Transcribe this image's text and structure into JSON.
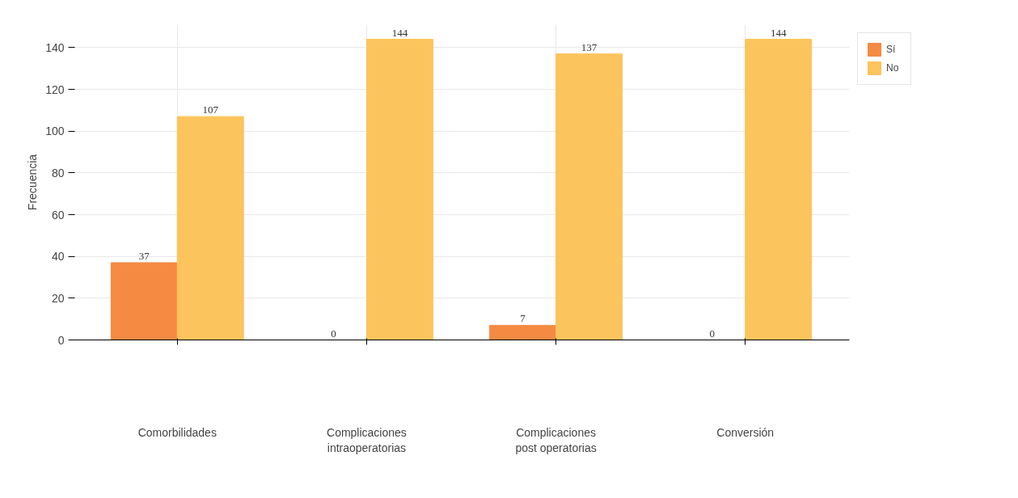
{
  "chart_data": {
    "type": "bar",
    "ylabel": "Frecuencia",
    "categories": [
      "Comorbilidades",
      "Complicaciones intraoperatorias",
      "Complicaciones post operatorias",
      "Conversión"
    ],
    "series": [
      {
        "name": "Sí",
        "color": "#f58a42",
        "values": [
          37,
          0,
          7,
          0
        ]
      },
      {
        "name": "No",
        "color": "#fcc45c",
        "values": [
          107,
          144,
          137,
          144
        ]
      }
    ],
    "ylim": [
      0,
      151
    ],
    "yticks": [
      0,
      20,
      40,
      60,
      80,
      100,
      120,
      140
    ],
    "grid": true,
    "legend": "top right",
    "data_labels": true
  }
}
